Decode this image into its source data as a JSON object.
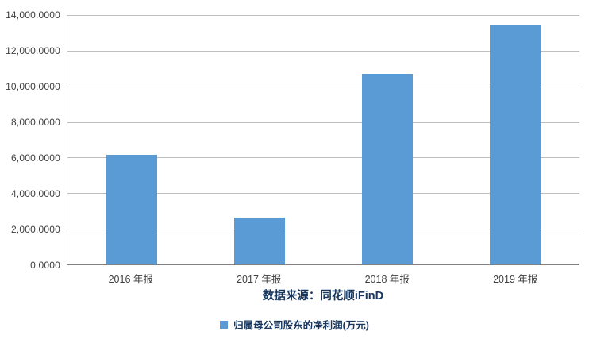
{
  "chart_data": {
    "type": "bar",
    "title": "",
    "categories": [
      "2016 年报",
      "2017 年报",
      "2018 年报",
      "2019 年报"
    ],
    "series": [
      {
        "name": "归属母公司股东的净利润(万元)",
        "values": [
          6150,
          2650,
          10700,
          13430
        ]
      }
    ],
    "xlabel": "",
    "ylabel": "",
    "ylim": [
      0,
      14000
    ],
    "ytick_step": 2000,
    "ytick_labels": [
      "14,000.0000",
      "12,000.0000",
      "10,000.0000",
      "8,000.0000",
      "6,000.0000",
      "4,000.0000",
      "2,000.0000",
      "0.0000"
    ],
    "grid": true,
    "legend_position": "bottom"
  },
  "caption": {
    "text": "数据来源：同花顺iFinD"
  },
  "legend": {
    "label": "归属母公司股东的净利润(万元)"
  },
  "colors": {
    "bar": "#5B9BD5",
    "gridline": "#BFBFBF",
    "axis_line": "#808080",
    "tick_text": "#404040",
    "accent_text": "#17375E",
    "background": "#FFFFFF"
  }
}
